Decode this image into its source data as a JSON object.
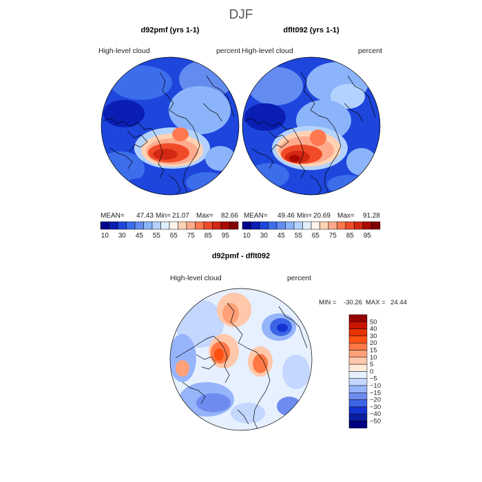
{
  "chart_data": {
    "title": "DJF",
    "panels": [
      {
        "type": "heatmap",
        "projection": "polar-stereographic-north",
        "title": "d92pmf (yrs 1-1)",
        "field_label": "High-level cloud",
        "units": "percent",
        "stats": {
          "mean_label": "MEAN=",
          "mean": "47.43",
          "min_label": "Min=",
          "min": "21.07",
          "max_label": "Max=",
          "max": "82.66"
        },
        "colorbar": {
          "levels": [
            10,
            30,
            45,
            55,
            65,
            75,
            85,
            95
          ],
          "colors": [
            "#00008c",
            "#0a1eb4",
            "#1e46dc",
            "#3c6eeb",
            "#648cf0",
            "#8cb4fa",
            "#b4d2ff",
            "#e1f0ff",
            "#fff5eb",
            "#ffd2b4",
            "#ffaa8c",
            "#ff7850",
            "#f04b28",
            "#d22814",
            "#aa0a00",
            "#820000"
          ],
          "tick_labels": [
            "10",
            "30",
            "45",
            "55",
            "65",
            "75",
            "85",
            "95"
          ]
        }
      },
      {
        "type": "heatmap",
        "projection": "polar-stereographic-north",
        "title": "dflt092 (yrs 1-1)",
        "field_label": "High-level cloud",
        "units": "percent",
        "stats": {
          "mean_label": "MEAN=",
          "mean": "49.46",
          "min_label": "Min=",
          "min": "20.69",
          "max_label": "Max=",
          "max": "91.28"
        },
        "colorbar": {
          "levels": [
            10,
            30,
            45,
            55,
            65,
            75,
            85,
            95
          ],
          "colors": [
            "#00008c",
            "#0a1eb4",
            "#1e46dc",
            "#3c6eeb",
            "#648cf0",
            "#8cb4fa",
            "#b4d2ff",
            "#e1f0ff",
            "#fff5eb",
            "#ffd2b4",
            "#ffaa8c",
            "#ff7850",
            "#f04b28",
            "#d22814",
            "#aa0a00",
            "#820000"
          ],
          "tick_labels": [
            "10",
            "30",
            "45",
            "55",
            "65",
            "75",
            "85",
            "95"
          ]
        }
      },
      {
        "type": "heatmap",
        "projection": "polar-stereographic-north",
        "title": "d92pmf - dflt092",
        "field_label": "High-level cloud",
        "units": "percent",
        "stats": {
          "min_label": "MIN =",
          "min": "-30.26",
          "max_label": "MAX =",
          "max": "24.44"
        },
        "colorbar": {
          "levels": [
            50,
            40,
            30,
            20,
            15,
            10,
            5,
            0,
            -5,
            -10,
            -15,
            -20,
            -30,
            -40,
            -50
          ],
          "tick_labels": [
            "50",
            "40",
            "30",
            "20",
            "15",
            "10",
            "5",
            "0",
            "−5",
            "−10",
            "−15",
            "−20",
            "−30",
            "−40",
            "−50"
          ],
          "colors": [
            "#960000",
            "#c81400",
            "#e63200",
            "#ff5014",
            "#ff7846",
            "#ffa078",
            "#ffc8aa",
            "#ffebd7",
            "#e6f0ff",
            "#c3d7ff",
            "#96b4fa",
            "#6e8cf0",
            "#3c64e6",
            "#1432d2",
            "#0a1ea0",
            "#000080"
          ]
        }
      }
    ]
  }
}
